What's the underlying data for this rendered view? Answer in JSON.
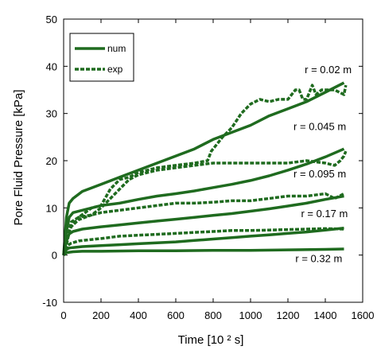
{
  "chart_data": {
    "type": "line",
    "xlabel": "Time [10 ² s]",
    "ylabel": "Pore Fluid Pressure [kPa]",
    "xlim": [
      0,
      1600
    ],
    "ylim": [
      -10,
      50
    ],
    "xticks": [
      0,
      200,
      400,
      600,
      800,
      1000,
      1200,
      1400,
      1600
    ],
    "yticks": [
      -10,
      0,
      10,
      20,
      30,
      40,
      50
    ],
    "grid": false,
    "legend": {
      "position": "top-left",
      "entries": [
        {
          "label": "num",
          "style": "solid"
        },
        {
          "label": "exp",
          "style": "dashed"
        }
      ]
    },
    "line_color": "#1f6b1f",
    "annotations": [
      {
        "text": "r = 0.02 m",
        "x": 1290,
        "y": 38.5
      },
      {
        "text": "r = 0.045 m",
        "x": 1230,
        "y": 26.5
      },
      {
        "text": "r = 0.095 m",
        "x": 1230,
        "y": 16.5
      },
      {
        "text": "r = 0.17 m",
        "x": 1270,
        "y": 8
      },
      {
        "text": "r = 0.32 m",
        "x": 1240,
        "y": -1.5
      }
    ],
    "series": [
      {
        "kind": "num",
        "radius": "r = 0.02 m",
        "x": [
          0,
          15,
          30,
          50,
          100,
          200,
          300,
          400,
          500,
          600,
          700,
          800,
          900,
          1000,
          1100,
          1200,
          1300,
          1400,
          1500
        ],
        "y": [
          0,
          8,
          11,
          12,
          13.5,
          15,
          16.5,
          18,
          19.5,
          21,
          22.5,
          24.5,
          26,
          27.5,
          29.5,
          31,
          32.5,
          34.5,
          36.5
        ]
      },
      {
        "kind": "exp",
        "radius": "r = 0.02 m",
        "x": [
          0,
          20,
          40,
          80,
          150,
          200,
          250,
          300,
          350,
          400,
          500,
          600,
          700,
          770,
          790,
          810,
          850,
          900,
          950,
          1000,
          1050,
          1100,
          1150,
          1200,
          1220,
          1240,
          1260,
          1280,
          1300,
          1330,
          1350,
          1380,
          1420,
          1450,
          1500,
          1510
        ],
        "y": [
          0,
          3,
          7,
          8,
          10,
          10.5,
          14,
          16,
          16.5,
          17.5,
          18.5,
          19,
          19.5,
          20,
          22,
          23,
          25,
          27,
          30,
          32,
          33,
          32.5,
          33,
          33,
          34,
          35,
          35,
          33,
          33,
          36,
          34,
          35,
          35,
          35,
          34,
          36
        ]
      },
      {
        "kind": "num",
        "radius": "r = 0.045 m",
        "x": [
          0,
          15,
          30,
          50,
          100,
          200,
          300,
          400,
          500,
          600,
          700,
          800,
          900,
          1000,
          1100,
          1200,
          1300,
          1400,
          1500
        ],
        "y": [
          0,
          5,
          8,
          9,
          9.5,
          10.5,
          11,
          11.8,
          12.5,
          13,
          13.6,
          14.3,
          15,
          15.8,
          16.8,
          18,
          19.3,
          20.8,
          22.5
        ]
      },
      {
        "kind": "exp",
        "radius": "r = 0.045 m",
        "x": [
          0,
          20,
          40,
          80,
          150,
          200,
          250,
          300,
          350,
          400,
          500,
          600,
          700,
          800,
          900,
          1000,
          1100,
          1200,
          1300,
          1400,
          1450,
          1480,
          1500,
          1510
        ],
        "y": [
          0,
          4,
          6,
          7.5,
          8.5,
          10,
          12,
          14,
          16,
          17,
          18,
          18.5,
          19,
          19.5,
          19.5,
          19.5,
          19.5,
          19.5,
          20,
          19.5,
          19,
          20,
          21,
          22
        ]
      },
      {
        "kind": "num",
        "radius": "r = 0.095 m",
        "x": [
          0,
          15,
          30,
          50,
          100,
          200,
          300,
          400,
          500,
          600,
          700,
          800,
          900,
          1000,
          1100,
          1200,
          1300,
          1400,
          1500
        ],
        "y": [
          0,
          3,
          4.5,
          5,
          5.5,
          6,
          6.4,
          6.8,
          7.2,
          7.6,
          8,
          8.4,
          8.8,
          9.3,
          9.8,
          10.4,
          11,
          11.8,
          12.5
        ]
      },
      {
        "kind": "exp",
        "radius": "r = 0.095 m",
        "x": [
          0,
          20,
          40,
          80,
          150,
          200,
          300,
          400,
          500,
          600,
          700,
          800,
          900,
          1000,
          1100,
          1200,
          1300,
          1400,
          1450,
          1500
        ],
        "y": [
          0,
          4,
          6,
          8,
          8.5,
          9,
          9.5,
          10,
          10.5,
          11,
          11,
          11.2,
          11.5,
          11.5,
          12,
          12.5,
          12.5,
          13,
          12,
          13
        ]
      },
      {
        "kind": "num",
        "radius": "r = 0.17 m",
        "x": [
          0,
          15,
          30,
          50,
          100,
          200,
          300,
          400,
          500,
          600,
          700,
          800,
          900,
          1000,
          1100,
          1200,
          1300,
          1400,
          1500
        ],
        "y": [
          0,
          1.2,
          1.5,
          1.6,
          1.8,
          2,
          2.2,
          2.4,
          2.6,
          2.8,
          3.1,
          3.4,
          3.7,
          4,
          4.3,
          4.6,
          4.9,
          5.3,
          5.7
        ]
      },
      {
        "kind": "exp",
        "radius": "r = 0.17 m",
        "x": [
          0,
          20,
          40,
          80,
          150,
          200,
          300,
          400,
          500,
          600,
          700,
          800,
          900,
          1000,
          1100,
          1200,
          1300,
          1400,
          1500
        ],
        "y": [
          0,
          2,
          2.5,
          3,
          3.3,
          3.5,
          4,
          4.2,
          4.4,
          4.6,
          4.8,
          5,
          5.2,
          5.2,
          5.3,
          5.4,
          5.5,
          5.6,
          5.5
        ]
      },
      {
        "kind": "num",
        "radius": "r = 0.32 m",
        "x": [
          0,
          15,
          30,
          50,
          100,
          200,
          400,
          600,
          800,
          1000,
          1200,
          1400,
          1500
        ],
        "y": [
          0,
          0.5,
          0.6,
          0.7,
          0.8,
          0.8,
          0.9,
          0.9,
          1,
          1,
          1.1,
          1.2,
          1.3
        ]
      }
    ]
  }
}
